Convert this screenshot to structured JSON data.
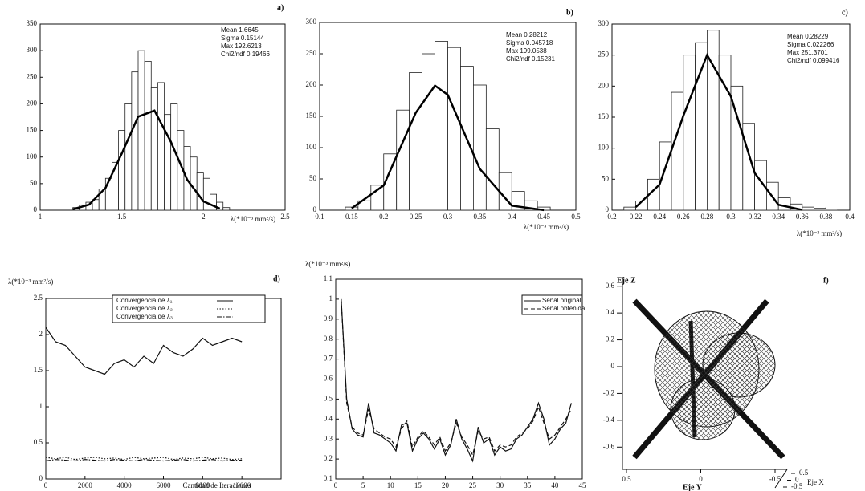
{
  "chart_data": [
    {
      "type": "histogram",
      "panel_label": "a)",
      "color": "#222",
      "stats": [
        "Mean 1.6645",
        "Sigma 0.15144",
        "Max 192.6213",
        "Chi2/ndf 0.19466"
      ],
      "xlabel": "λ(*10⁻³ mm²/s)",
      "bins": [
        1.2,
        1.24,
        1.28,
        1.32,
        1.36,
        1.4,
        1.44,
        1.48,
        1.52,
        1.56,
        1.6,
        1.64,
        1.68,
        1.72,
        1.76,
        1.8,
        1.84,
        1.88,
        1.92,
        1.96,
        2.0,
        2.04,
        2.08,
        2.12,
        2.16
      ],
      "values": [
        5,
        10,
        15,
        20,
        40,
        60,
        90,
        150,
        200,
        260,
        300,
        280,
        230,
        240,
        180,
        200,
        150,
        120,
        100,
        70,
        60,
        30,
        15,
        5
      ],
      "fit": {
        "x": [
          1.2,
          1.3,
          1.4,
          1.5,
          1.6,
          1.7,
          1.8,
          1.9,
          2.0,
          2.1
        ],
        "values": [
          1.7,
          10.6,
          41.9,
          106.8,
          175.9,
          187.4,
          129.0,
          57.5,
          16.6,
          3.1
        ]
      },
      "xlim": [
        1,
        2.5
      ],
      "ylim": [
        0,
        350
      ],
      "xticks": [
        1,
        1.5,
        2,
        2.5
      ],
      "yticks": [
        0,
        50,
        100,
        150,
        200,
        250,
        300,
        350
      ]
    },
    {
      "type": "histogram",
      "panel_label": "b)",
      "color": "#222",
      "stats": [
        "Mean 0.28212",
        "Sigma 0.045718",
        "Max 199.0538",
        "Chi2/ndf 0.15231"
      ],
      "xlabel": "λ(*10⁻³ mm²/s)",
      "bins": [
        0.14,
        0.16,
        0.18,
        0.2,
        0.22,
        0.24,
        0.26,
        0.28,
        0.3,
        0.32,
        0.34,
        0.36,
        0.38,
        0.4,
        0.42,
        0.44,
        0.46
      ],
      "values": [
        5,
        15,
        40,
        90,
        160,
        220,
        250,
        270,
        260,
        230,
        200,
        130,
        60,
        30,
        15,
        5
      ],
      "fit": {
        "x": [
          0.15,
          0.2,
          0.25,
          0.28,
          0.3,
          0.35,
          0.4,
          0.45
        ],
        "values": [
          3.1,
          39.7,
          155.6,
          199,
          184.4,
          66.1,
          7.2,
          0.2
        ]
      },
      "xlim": [
        0.1,
        0.5
      ],
      "ylim": [
        0,
        300
      ],
      "xticks": [
        0.1,
        0.15,
        0.2,
        0.25,
        0.3,
        0.35,
        0.4,
        0.45,
        0.5
      ],
      "yticks": [
        0,
        50,
        100,
        150,
        200,
        250,
        300
      ]
    },
    {
      "type": "histogram",
      "panel_label": "c)",
      "color": "#222",
      "stats": [
        "Mean 0.28229",
        "Sigma 0.022266",
        "Max 251.3701",
        "Chi2/ndf 0.099416"
      ],
      "xlabel": "λ(*10⁻³ mm²/s)",
      "bins": [
        0.21,
        0.22,
        0.23,
        0.24,
        0.25,
        0.26,
        0.27,
        0.28,
        0.29,
        0.3,
        0.31,
        0.32,
        0.33,
        0.34,
        0.35,
        0.36,
        0.37,
        0.38,
        0.39
      ],
      "values": [
        5,
        15,
        50,
        110,
        190,
        250,
        270,
        290,
        250,
        200,
        140,
        80,
        45,
        20,
        10,
        5,
        3,
        2
      ],
      "fit": {
        "x": [
          0.22,
          0.24,
          0.26,
          0.28,
          0.3,
          0.32,
          0.34,
          0.36
        ],
        "values": [
          5.0,
          41.4,
          152.2,
          250.1,
          183.3,
          60.0,
          8.7,
          0.6
        ]
      },
      "xlim": [
        0.2,
        0.4
      ],
      "ylim": [
        0,
        300
      ],
      "xticks": [
        0.2,
        0.22,
        0.24,
        0.26,
        0.28,
        0.3,
        0.32,
        0.34,
        0.36,
        0.38,
        0.4
      ],
      "yticks": [
        0,
        50,
        100,
        150,
        200,
        250,
        300
      ]
    },
    {
      "type": "line",
      "panel_label": "d)",
      "ylabel": "λ(*10⁻³ mm²/s)",
      "xlabel": "Cantidad de Iteraciones",
      "x": [
        0,
        500,
        1000,
        1500,
        2000,
        2500,
        3000,
        3500,
        4000,
        4500,
        5000,
        5500,
        6000,
        6500,
        7000,
        7500,
        8000,
        8500,
        9000,
        9500,
        10000
      ],
      "series": [
        {
          "name": "Convergencia de λ₁",
          "color": "#111",
          "dash": "solid",
          "values": [
            2.1,
            1.9,
            1.85,
            1.7,
            1.55,
            1.5,
            1.45,
            1.6,
            1.65,
            1.55,
            1.7,
            1.6,
            1.85,
            1.75,
            1.7,
            1.8,
            1.95,
            1.85,
            1.9,
            1.95,
            1.9
          ]
        },
        {
          "name": "Convergencia de λ₂",
          "color": "#111",
          "dash": "dotted",
          "values": [
            0.3,
            0.28,
            0.3,
            0.27,
            0.29,
            0.3,
            0.28,
            0.29,
            0.27,
            0.3,
            0.28,
            0.29,
            0.3,
            0.27,
            0.29,
            0.28,
            0.3,
            0.28,
            0.29,
            0.27,
            0.28
          ]
        },
        {
          "name": "Convergencia de λ₃",
          "color": "#111",
          "dash": "dashdot",
          "values": [
            0.25,
            0.27,
            0.26,
            0.25,
            0.27,
            0.26,
            0.25,
            0.27,
            0.26,
            0.25,
            0.27,
            0.26,
            0.25,
            0.26,
            0.27,
            0.25,
            0.26,
            0.27,
            0.25,
            0.26,
            0.26
          ]
        }
      ],
      "xlim": [
        0,
        12000
      ],
      "ylim": [
        0,
        2.5
      ],
      "xticks": [
        0,
        2000,
        4000,
        6000,
        8000,
        10000
      ],
      "yticks": [
        0,
        0.5,
        1,
        1.5,
        2,
        2.5
      ]
    },
    {
      "type": "line",
      "ylabel": "λ(*10⁻³ mm²/s)",
      "x": [
        1,
        2,
        3,
        4,
        5,
        6,
        7,
        8,
        9,
        10,
        11,
        12,
        13,
        14,
        15,
        16,
        17,
        18,
        19,
        20,
        21,
        22,
        23,
        24,
        25,
        26,
        27,
        28,
        29,
        30,
        31,
        32,
        33,
        34,
        35,
        36,
        37,
        38,
        39,
        40,
        41,
        42,
        43
      ],
      "series": [
        {
          "name": "Señal original",
          "color": "#111",
          "dash": "solid",
          "values": [
            1.0,
            0.5,
            0.35,
            0.32,
            0.31,
            0.48,
            0.33,
            0.32,
            0.3,
            0.28,
            0.24,
            0.37,
            0.38,
            0.24,
            0.3,
            0.33,
            0.3,
            0.25,
            0.3,
            0.22,
            0.27,
            0.4,
            0.3,
            0.25,
            0.19,
            0.36,
            0.28,
            0.3,
            0.22,
            0.26,
            0.24,
            0.25,
            0.3,
            0.32,
            0.36,
            0.4,
            0.48,
            0.4,
            0.27,
            0.3,
            0.35,
            0.38,
            0.48
          ]
        },
        {
          "name": "Señal obtenida",
          "color": "#111",
          "dash": "dashed",
          "values": [
            1.0,
            0.48,
            0.36,
            0.33,
            0.32,
            0.45,
            0.35,
            0.33,
            0.31,
            0.3,
            0.26,
            0.35,
            0.39,
            0.26,
            0.31,
            0.34,
            0.31,
            0.27,
            0.31,
            0.24,
            0.28,
            0.38,
            0.31,
            0.27,
            0.22,
            0.34,
            0.3,
            0.31,
            0.24,
            0.27,
            0.26,
            0.27,
            0.31,
            0.33,
            0.35,
            0.39,
            0.46,
            0.38,
            0.3,
            0.32,
            0.36,
            0.4,
            0.45
          ]
        }
      ],
      "xlim": [
        0,
        45
      ],
      "ylim": [
        0.1,
        1.1
      ],
      "xticks": [
        0,
        5,
        10,
        15,
        20,
        25,
        30,
        35,
        40,
        45
      ],
      "yticks": [
        0.1,
        0.2,
        0.3,
        0.4,
        0.5,
        0.6,
        0.7,
        0.8,
        0.9,
        1,
        1.1
      ]
    },
    {
      "type": "surface",
      "panel_label": "f)",
      "zlabel": "Eje Z",
      "xlabel": "Eje X",
      "ylabel": "Eje Y",
      "zlim": [
        -0.7,
        0.7
      ],
      "zticks": [
        -0.6,
        -0.4,
        -0.2,
        0,
        0.2,
        0.4,
        0.6
      ],
      "ylim": [
        0.5,
        -0.5
      ],
      "yticks": [
        0.5,
        0,
        -0.5
      ],
      "xlim": [
        0.5,
        -0.5
      ],
      "xticks": [
        0.5,
        0,
        -0.5
      ]
    }
  ]
}
